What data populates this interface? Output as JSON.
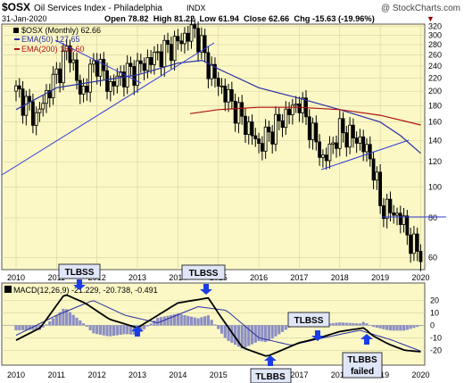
{
  "header": {
    "symbol": "$OSX",
    "name": "Oil Services Index - Philadelphia",
    "exchange": "INDX",
    "date": "31-Jan-2020",
    "ohlc": "Open 78.82  High 81.22  Low 61.94  Close 62.66  Chg -15.63 (-19.96%)",
    "change_marker": "▼",
    "credit": "@ StockCharts.com"
  },
  "legend": {
    "main": "$OSX (Monthly) 62.66",
    "ema50": "EMA(50) 127.65",
    "ema200": "EMA(200) 156.60",
    "macd": "MACD(12,26,9) -21.229, -20.738, -0.491"
  },
  "colors": {
    "panel_bg": "#fbf8c6",
    "price_bars": "#000000",
    "ema50": "#2a2fa3",
    "ema200": "#b01010",
    "trendline": "#2f3bd8",
    "histogram": "#8c8fc4",
    "callout_bg": "#dfe6f8",
    "arrow": "#1a3de8",
    "change": "#8b0000"
  },
  "annotations": {
    "c1": "TLBSS",
    "c2": "TLBSS",
    "c3": "TLBSS",
    "c4": "TLBBS",
    "c5": "TLBBS",
    "c5b": "failed"
  },
  "chart_data": [
    {
      "type": "line",
      "name": "price_panel",
      "x_tick_labels": [
        "2010",
        "2011",
        "2012",
        "2013",
        "2014",
        "2015",
        "2016",
        "2017",
        "2018",
        "2019",
        "2020"
      ],
      "y_tick_labels": [
        60,
        80,
        100,
        120,
        140,
        160,
        180,
        200,
        220,
        240,
        260,
        280,
        300,
        320
      ],
      "ylim": [
        55,
        325
      ],
      "scale": "log",
      "grid": true,
      "series": [
        {
          "name": "$OSX (Monthly)",
          "x": [
            2010.0,
            2010.5,
            2011.0,
            2011.3,
            2011.6,
            2011.8,
            2012.0,
            2012.3,
            2012.6,
            2013.0,
            2013.5,
            2014.0,
            2014.4,
            2014.5,
            2014.75,
            2015.0,
            2015.5,
            2016.0,
            2016.5,
            2017.0,
            2017.3,
            2017.6,
            2018.0,
            2018.5,
            2018.8,
            2019.0,
            2019.5,
            2019.8,
            2020.0
          ],
          "values": [
            200,
            165,
            225,
            275,
            190,
            225,
            250,
            205,
            225,
            235,
            260,
            285,
            312,
            295,
            240,
            210,
            170,
            135,
            160,
            185,
            150,
            120,
            150,
            140,
            120,
            88,
            80,
            65,
            62.66
          ]
        },
        {
          "name": "EMA(50)",
          "x": [
            2010.0,
            2011.0,
            2012.0,
            2013.0,
            2014.0,
            2014.6,
            2015.0,
            2016.0,
            2017.0,
            2018.0,
            2019.0,
            2019.5,
            2020.0
          ],
          "values": [
            175,
            205,
            215,
            225,
            245,
            250,
            235,
            205,
            190,
            175,
            160,
            145,
            127.65
          ]
        },
        {
          "name": "EMA(200)",
          "x": [
            2014.3,
            2015.0,
            2016.0,
            2017.0,
            2018.0,
            2019.0,
            2020.0
          ],
          "values": [
            170,
            175,
            178,
            178,
            175,
            168,
            156.6
          ]
        }
      ]
    },
    {
      "type": "line",
      "name": "macd_panel",
      "y_tick_labels": [
        -20,
        -10,
        0,
        10,
        20
      ],
      "ylim": [
        -32,
        34
      ],
      "series": [
        {
          "name": "MACD",
          "x": [
            2010.0,
            2010.6,
            2011.2,
            2011.7,
            2012.3,
            2013.0,
            2014.0,
            2014.75,
            2015.1,
            2015.6,
            2016.2,
            2017.0,
            2017.5,
            2018.0,
            2018.6,
            2018.8,
            2019.2,
            2019.6,
            2020.0
          ],
          "values": [
            -12,
            -2,
            25,
            18,
            5,
            -2,
            18,
            22,
            5,
            -18,
            -25,
            -14,
            -10,
            -5,
            -2,
            -8,
            -15,
            -20,
            -21.229
          ]
        },
        {
          "name": "Signal",
          "x": [
            2010.0,
            2011.0,
            2011.9,
            2012.7,
            2013.5,
            2014.5,
            2015.2,
            2016.0,
            2016.8,
            2017.6,
            2018.5,
            2019.3,
            2020.0
          ],
          "values": [
            -8,
            8,
            20,
            8,
            2,
            15,
            12,
            -10,
            -16,
            -10,
            -4,
            -12,
            -20.738
          ]
        }
      ]
    }
  ]
}
